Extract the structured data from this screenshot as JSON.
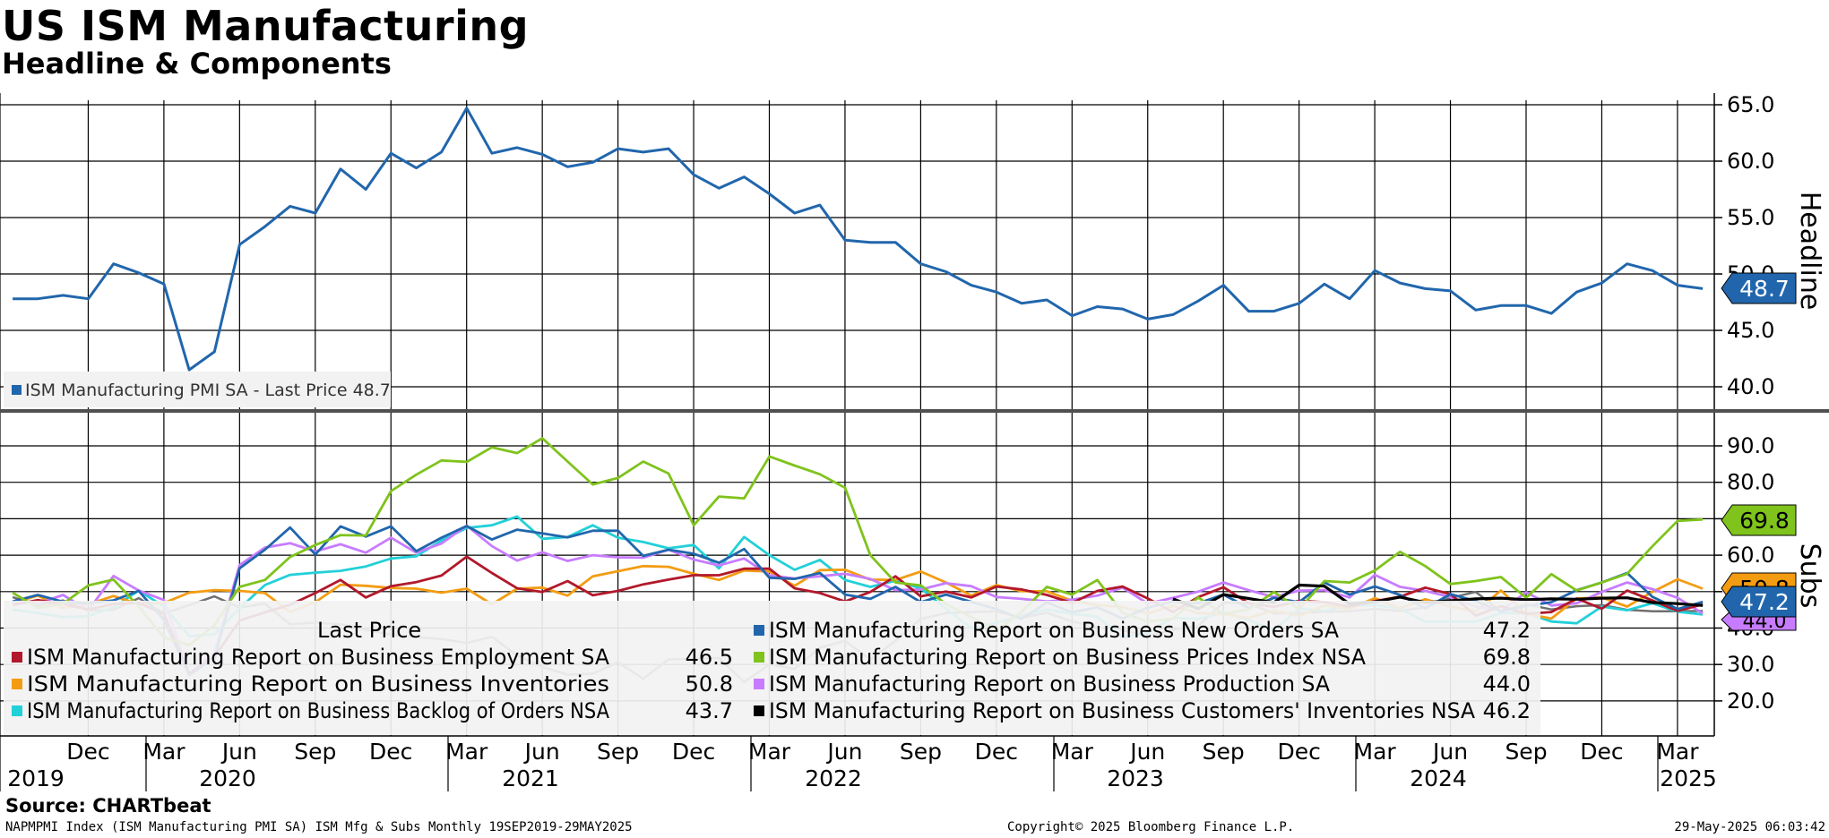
{
  "header": {
    "title": "US ISM Manufacturing",
    "subtitle": "Headline & Components"
  },
  "footer": {
    "source": "Source: CHARTbeat",
    "description": "NAPMPMI Index (ISM Manufacturing PMI SA) ISM Mfg & Subs  Monthly 19SEP2019-29MAY2025",
    "copyright": "Copyright© 2025 Bloomberg Finance L.P.",
    "timestamp": "29-May-2025 06:03:42"
  },
  "colors": {
    "headline": "#2166ac",
    "new_orders": "#2166ac",
    "employment": "#b2182b",
    "prices": "#7fc31c",
    "inventories": "#f39c12",
    "production": "#c77cff",
    "backlog": "#22d0d8",
    "customers_inv": "#000000",
    "gray_series": "#707070"
  },
  "chart_data": [
    {
      "type": "line",
      "panel": "top",
      "axis_label": "Headline",
      "y_ticks": [
        "65.0",
        "60.0",
        "55.0",
        "50.0",
        "45.0",
        "40.0"
      ],
      "ylim": [
        37.9,
        67.5
      ],
      "x_start": "2019-09",
      "x_months": [
        "2019-09",
        "2019-10",
        "2019-11",
        "2019-12",
        "2020-01",
        "2020-02",
        "2020-03",
        "2020-04",
        "2020-05",
        "2020-06",
        "2020-07",
        "2020-08",
        "2020-09",
        "2020-10",
        "2020-11",
        "2020-12",
        "2021-01",
        "2021-02",
        "2021-03",
        "2021-04",
        "2021-05",
        "2021-06",
        "2021-07",
        "2021-08",
        "2021-09",
        "2021-10",
        "2021-11",
        "2021-12",
        "2022-01",
        "2022-02",
        "2022-03",
        "2022-04",
        "2022-05",
        "2022-06",
        "2022-07",
        "2022-08",
        "2022-09",
        "2022-10",
        "2022-11",
        "2022-12",
        "2023-01",
        "2023-02",
        "2023-03",
        "2023-04",
        "2023-05",
        "2023-06",
        "2023-07",
        "2023-08",
        "2023-09",
        "2023-10",
        "2023-11",
        "2023-12",
        "2024-01",
        "2024-02",
        "2024-03",
        "2024-04",
        "2024-05",
        "2024-06",
        "2024-07",
        "2024-08",
        "2024-09",
        "2024-10",
        "2024-11",
        "2024-12",
        "2025-01",
        "2025-02",
        "2025-03",
        "2025-04"
      ],
      "series": [
        {
          "name": "ISM Manufacturing PMI SA",
          "legend_text": "ISM Manufacturing PMI SA - Last Price 48.7",
          "last_value": "48.7",
          "values": [
            47.8,
            47.8,
            48.1,
            47.8,
            50.9,
            50.1,
            49.1,
            41.5,
            43.1,
            52.6,
            54.2,
            56.0,
            55.4,
            59.3,
            57.5,
            60.7,
            59.4,
            60.8,
            64.7,
            60.7,
            61.2,
            60.6,
            59.5,
            59.9,
            61.1,
            60.8,
            61.1,
            58.8,
            57.6,
            58.6,
            57.1,
            55.4,
            56.1,
            53.0,
            52.8,
            52.8,
            50.9,
            50.2,
            49.0,
            48.4,
            47.4,
            47.7,
            46.3,
            47.1,
            46.9,
            46.0,
            46.4,
            47.6,
            49.0,
            46.7,
            46.7,
            47.4,
            49.1,
            47.8,
            50.3,
            49.2,
            48.7,
            48.5,
            46.8,
            47.2,
            47.2,
            46.5,
            48.4,
            49.2,
            50.9,
            50.3,
            49.0,
            48.7
          ]
        }
      ]
    },
    {
      "type": "line",
      "panel": "bottom",
      "axis_label": "Subs",
      "y_ticks": [
        "90.0",
        "80.0",
        "70.0",
        "60.0",
        "50.0",
        "40.0",
        "30.0",
        "20.0"
      ],
      "ylim": [
        10.8,
        95.7
      ],
      "x_start": "2019-09",
      "x_tick_months": [
        "Dec",
        "Mar",
        "Jun",
        "Sep",
        "Dec",
        "Mar",
        "Jun",
        "Sep",
        "Dec",
        "Mar",
        "Jun",
        "Sep",
        "Dec",
        "Mar",
        "Jun",
        "Sep",
        "Dec",
        "Mar",
        "Jun",
        "Sep",
        "Dec",
        "Mar"
      ],
      "x_tick_years": [
        "2019",
        "2020",
        "2021",
        "2022",
        "2023",
        "2024",
        "2025"
      ],
      "legend_header": "Last Price",
      "series": [
        {
          "name": "ISM Manufacturing Report on Business Employment SA",
          "last_value": "46.5",
          "values": [
            46.3,
            47.7,
            46.6,
            45.1,
            46.6,
            46.9,
            43.8,
            27.5,
            32.1,
            42.1,
            44.3,
            46.4,
            49.6,
            53.2,
            48.4,
            51.5,
            52.6,
            54.4,
            59.6,
            55.1,
            50.9,
            49.9,
            52.9,
            49.0,
            50.2,
            52.0,
            53.3,
            54.5,
            54.5,
            56.3,
            56.3,
            50.9,
            49.6,
            47.3,
            49.9,
            54.2,
            48.7,
            50.0,
            48.4,
            51.4,
            50.6,
            49.1,
            46.9,
            50.2,
            51.4,
            48.1,
            44.4,
            48.5,
            51.2,
            46.8,
            45.8,
            47.5,
            47.1,
            45.9,
            47.4,
            48.6,
            51.1,
            49.3,
            43.4,
            46.0,
            43.9,
            44.4,
            48.1,
            45.3,
            50.3,
            47.6,
            44.7,
            46.5
          ]
        },
        {
          "name": "ISM Manufacturing Report on Business New Orders SA",
          "last_value": "47.2",
          "values": [
            47.3,
            49.1,
            47.2,
            46.8,
            47.6,
            50.2,
            42.2,
            27.1,
            31.8,
            56.4,
            61.5,
            67.6,
            60.2,
            67.9,
            65.1,
            67.9,
            61.1,
            64.8,
            68.0,
            64.3,
            67.0,
            66.0,
            64.9,
            66.7,
            66.7,
            59.8,
            61.5,
            60.4,
            57.9,
            61.7,
            53.8,
            53.5,
            55.1,
            49.2,
            48.0,
            51.3,
            47.1,
            49.2,
            47.2,
            45.2,
            42.5,
            47.0,
            44.3,
            45.7,
            42.6,
            45.6,
            47.3,
            46.8,
            49.2,
            45.5,
            48.3,
            47.1,
            52.5,
            49.2,
            51.4,
            49.1,
            45.4,
            49.3,
            47.4,
            44.6,
            46.1,
            47.1,
            50.4,
            52.5,
            55.1,
            48.6,
            45.2,
            47.2
          ]
        },
        {
          "name": "ISM Manufacturing Report on Business Prices Index NSA",
          "last_value": "69.8",
          "values": [
            49.7,
            45.5,
            46.7,
            51.7,
            53.3,
            45.9,
            37.4,
            35.3,
            40.8,
            51.3,
            53.2,
            59.5,
            62.8,
            65.5,
            65.4,
            77.6,
            82.1,
            86.0,
            85.6,
            89.6,
            88.0,
            92.1,
            85.7,
            79.4,
            81.2,
            85.7,
            82.4,
            68.2,
            76.1,
            75.6,
            87.1,
            84.6,
            82.2,
            78.5,
            60.0,
            52.5,
            51.7,
            46.6,
            43.0,
            39.4,
            44.5,
            51.3,
            49.2,
            53.2,
            44.2,
            41.8,
            42.6,
            48.4,
            43.8,
            45.1,
            49.9,
            45.2,
            52.9,
            52.5,
            55.8,
            60.9,
            57.0,
            52.1,
            52.9,
            54.0,
            48.3,
            54.8,
            50.3,
            52.5,
            54.9,
            62.4,
            69.4,
            69.8
          ]
        },
        {
          "name": "ISM Manufacturing Report on Business Inventories",
          "last_value": "50.8",
          "values": [
            46.9,
            48.9,
            45.5,
            46.5,
            48.8,
            46.5,
            46.9,
            49.7,
            50.4,
            50.2,
            49.6,
            44.4,
            47.1,
            51.9,
            51.6,
            51.0,
            50.8,
            49.7,
            50.8,
            46.5,
            50.8,
            51.1,
            48.9,
            54.2,
            55.6,
            57.0,
            56.8,
            54.9,
            53.2,
            55.8,
            55.5,
            51.6,
            55.9,
            56.0,
            53.3,
            53.2,
            55.5,
            52.5,
            48.9,
            51.8,
            50.1,
            50.1,
            47.5,
            46.3,
            45.8,
            44.0,
            46.1,
            44.1,
            43.8,
            42.8,
            44.8,
            43.3,
            46.2,
            45.3,
            48.2,
            45.4,
            47.9,
            45.9,
            44.5,
            50.3,
            43.9,
            42.6,
            48.1,
            48.4,
            45.9,
            49.9,
            53.4,
            50.8
          ]
        },
        {
          "name": "ISM Manufacturing Report on Business Production SA",
          "last_value": "44.0",
          "values": [
            47.3,
            46.7,
            49.1,
            44.8,
            54.3,
            50.3,
            47.7,
            27.5,
            33.2,
            57.3,
            62.1,
            63.3,
            61.0,
            63.0,
            60.7,
            64.8,
            60.7,
            63.2,
            68.1,
            62.5,
            58.5,
            60.8,
            58.4,
            60.0,
            59.4,
            59.3,
            61.5,
            58.8,
            57.2,
            59.1,
            54.5,
            53.6,
            54.2,
            54.9,
            53.5,
            50.4,
            50.6,
            52.3,
            51.5,
            48.5,
            48.0,
            47.3,
            47.8,
            48.9,
            51.1,
            46.7,
            48.3,
            50.0,
            52.5,
            50.4,
            48.5,
            50.3,
            50.4,
            48.4,
            54.6,
            51.3,
            50.2,
            48.5,
            45.9,
            44.8,
            49.8,
            46.2,
            46.8,
            49.9,
            52.5,
            50.7,
            48.3,
            44.0
          ]
        },
        {
          "name": "ISM Manufacturing Report on Business Backlog of Orders NSA",
          "last_value": "43.7",
          "values": [
            45.1,
            44.1,
            43.0,
            43.3,
            45.7,
            50.3,
            45.9,
            37.8,
            38.3,
            45.4,
            51.8,
            54.6,
            55.2,
            55.7,
            56.9,
            59.1,
            59.7,
            64.0,
            67.5,
            68.2,
            70.6,
            64.5,
            65.0,
            68.2,
            64.8,
            63.6,
            61.9,
            62.8,
            56.4,
            65.0,
            60.0,
            56.0,
            58.7,
            53.2,
            51.3,
            53.0,
            50.9,
            45.3,
            40.0,
            41.4,
            43.4,
            45.1,
            43.9,
            43.1,
            37.5,
            38.7,
            42.8,
            42.5,
            44.3,
            42.2,
            39.3,
            45.3,
            44.7,
            46.3,
            46.3,
            45.4,
            41.7,
            41.8,
            41.7,
            44.1,
            44.1,
            41.8,
            41.3,
            45.9,
            44.9,
            46.8,
            44.5,
            43.7
          ]
        },
        {
          "name": "ISM Manufacturing Report on Business Customers' Inventories NSA",
          "last_value": "46.2",
          "values": [
            null,
            null,
            null,
            null,
            null,
            null,
            null,
            null,
            null,
            null,
            null,
            null,
            null,
            null,
            null,
            null,
            null,
            null,
            null,
            null,
            null,
            null,
            null,
            null,
            null,
            null,
            null,
            null,
            null,
            null,
            null,
            null,
            null,
            null,
            null,
            null,
            null,
            null,
            null,
            null,
            null,
            null,
            null,
            null,
            null,
            null,
            48.0,
            45.3,
            49.2,
            48.1,
            47.0,
            51.8,
            51.5,
            46.6,
            47.2,
            48.5,
            47.0,
            47.5,
            48.0,
            48.2,
            47.8,
            48.0,
            47.9,
            48.2,
            48.3,
            47.0,
            46.7,
            46.2
          ]
        },
        {
          "name": "unlabeled gray series",
          "last_value": "",
          "values": [
            48.5,
            46.2,
            47.6,
            44.8,
            45.0,
            48.2,
            44.0,
            46.3,
            48.7,
            45.6,
            46.7,
            41.0,
            41.5,
            41.0,
            39.5,
            38.2,
            37.5,
            37.0,
            35.9,
            37.6,
            32.5,
            29.3,
            27.2,
            27.5,
            30.6,
            26.1,
            31.4,
            31.6,
            31.8,
            25.2,
            30.0,
            28.8,
            34.6,
            36.5,
            31.3,
            36.5,
            42.5,
            44.1,
            44.4,
            44.6,
            42.8,
            44.2,
            41.8,
            40.2,
            39.4,
            37.8,
            39.5,
            40.6,
            47.0,
            46.8,
            44.0,
            44.1,
            44.5,
            44.6,
            45.2,
            44.7,
            45.7,
            48.3,
            49.9,
            44.6,
            46.5,
            45.1,
            46.0,
            46.3,
            45.0,
            44.6,
            44.6,
            44.7
          ]
        }
      ]
    }
  ]
}
